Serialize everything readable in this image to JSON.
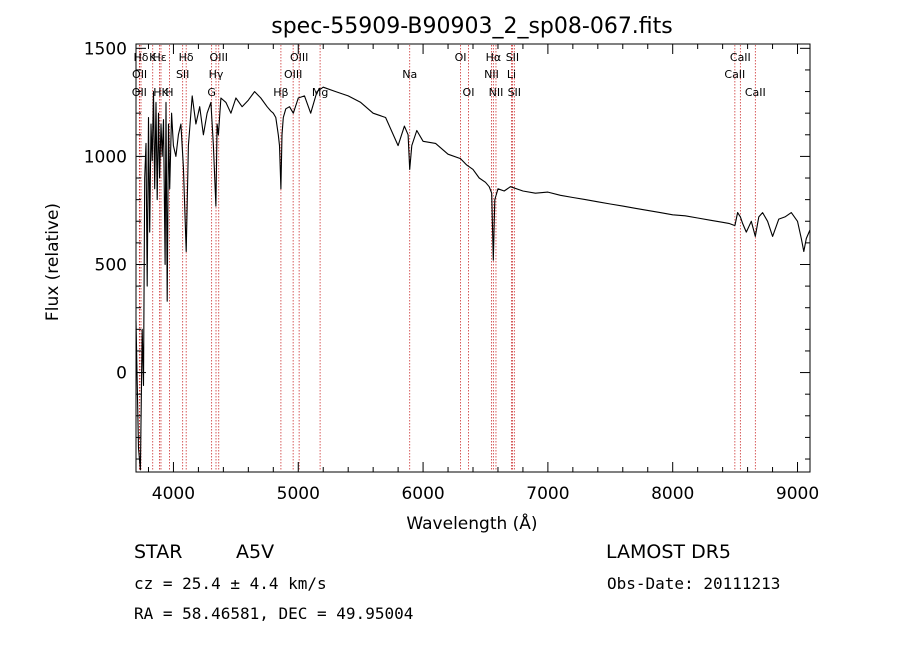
{
  "chart_data": {
    "type": "line",
    "title": "spec-55909-B90903_2_sp08-067.fits",
    "xlabel": "Wavelength (Å)",
    "ylabel": "Flux (relative)",
    "xlim": [
      3700,
      9100
    ],
    "ylim": [
      -460,
      1520
    ],
    "x_ticks": [
      4000,
      5000,
      6000,
      7000,
      8000,
      9000
    ],
    "y_ticks": [
      0,
      500,
      1000,
      1500
    ],
    "grid": false,
    "series": [
      {
        "x": [
          3700,
          3720,
          3735,
          3750,
          3760,
          3770,
          3780,
          3790,
          3800,
          3810,
          3820,
          3830,
          3840,
          3850,
          3860,
          3870,
          3880,
          3889,
          3900,
          3910,
          3920,
          3933,
          3940,
          3950,
          3960,
          3970,
          3985,
          4000,
          4020,
          4040,
          4060,
          4080,
          4102,
          4120,
          4150,
          4180,
          4210,
          4240,
          4270,
          4300,
          4320,
          4340,
          4350,
          4360,
          4380,
          4420,
          4460,
          4500,
          4550,
          4600,
          4650,
          4700,
          4750,
          4780,
          4800,
          4820,
          4840,
          4850,
          4861,
          4870,
          4880,
          4900,
          4930,
          4960,
          5000,
          5050,
          5100,
          5150,
          5200,
          5300,
          5400,
          5500,
          5600,
          5700,
          5800,
          5850,
          5880,
          5893,
          5910,
          5950,
          6000,
          6100,
          6200,
          6300,
          6350,
          6400,
          6450,
          6500,
          6530,
          6550,
          6563,
          6575,
          6600,
          6650,
          6700,
          6800,
          6900,
          7000,
          7100,
          7200,
          7300,
          7400,
          7500,
          7600,
          7700,
          7800,
          7900,
          8000,
          8100,
          8200,
          8300,
          8400,
          8450,
          8498,
          8520,
          8542,
          8560,
          8590,
          8630,
          8662,
          8690,
          8720,
          8760,
          8800,
          8850,
          8900,
          8950,
          9000,
          9030,
          9050,
          9070,
          9100
        ],
        "y": [
          240,
          -350,
          -450,
          200,
          -60,
          900,
          1060,
          400,
          1180,
          650,
          1150,
          980,
          1300,
          850,
          1250,
          800,
          1200,
          900,
          1150,
          1000,
          1170,
          500,
          1250,
          330,
          1150,
          850,
          1200,
          1050,
          1000,
          1100,
          1150,
          950,
          560,
          1050,
          1280,
          1150,
          1230,
          1100,
          1200,
          1250,
          1050,
          770,
          1150,
          1100,
          1270,
          1250,
          1200,
          1270,
          1230,
          1260,
          1300,
          1270,
          1230,
          1210,
          1200,
          1180,
          1100,
          1050,
          850,
          1100,
          1180,
          1220,
          1230,
          1200,
          1270,
          1280,
          1200,
          1300,
          1320,
          1300,
          1280,
          1250,
          1200,
          1180,
          1050,
          1140,
          1100,
          940,
          1050,
          1120,
          1070,
          1060,
          1010,
          990,
          960,
          940,
          900,
          880,
          860,
          830,
          520,
          800,
          850,
          840,
          860,
          840,
          830,
          835,
          820,
          810,
          800,
          790,
          780,
          770,
          760,
          750,
          740,
          730,
          725,
          715,
          705,
          695,
          690,
          680,
          740,
          720,
          690,
          650,
          700,
          630,
          720,
          740,
          700,
          630,
          710,
          720,
          740,
          700,
          620,
          560,
          620,
          660
        ]
      }
    ],
    "lines": [
      {
        "label": "Hδ",
        "x": 3740,
        "row": 0
      },
      {
        "label": "OII",
        "x": 3729,
        "row": 1
      },
      {
        "label": "OII",
        "x": 3727,
        "row": 2
      },
      {
        "label": "K",
        "x": 3834,
        "row": 0
      },
      {
        "label": "Hε",
        "x": 3889,
        "row": 0
      },
      {
        "label": "HK",
        "x": 3900,
        "row": 2
      },
      {
        "label": "H",
        "x": 3968,
        "row": 2
      },
      {
        "label": "Hδ",
        "x": 4102,
        "row": 0
      },
      {
        "label": "SII",
        "x": 4074,
        "row": 1
      },
      {
        "label": "OIII",
        "x": 4363,
        "row": 0
      },
      {
        "label": "Hγ",
        "x": 4341,
        "row": 1
      },
      {
        "label": "G",
        "x": 4306,
        "row": 2
      },
      {
        "label": "Hβ",
        "x": 4861,
        "row": 2
      },
      {
        "label": "OIII",
        "x": 5007,
        "row": 0
      },
      {
        "label": "OIII",
        "x": 4959,
        "row": 1
      },
      {
        "label": "Mg",
        "x": 5175,
        "row": 2
      },
      {
        "label": "Na",
        "x": 5893,
        "row": 1
      },
      {
        "label": "OI",
        "x": 6300,
        "row": 0
      },
      {
        "label": "OI",
        "x": 6364,
        "row": 2
      },
      {
        "label": "Hα",
        "x": 6563,
        "row": 0
      },
      {
        "label": "SII",
        "x": 6716,
        "row": 0
      },
      {
        "label": "NII",
        "x": 6548,
        "row": 1
      },
      {
        "label": "Li",
        "x": 6708,
        "row": 1
      },
      {
        "label": "NII",
        "x": 6584,
        "row": 2
      },
      {
        "label": "SII",
        "x": 6731,
        "row": 2
      },
      {
        "label": "CaII",
        "x": 8542,
        "row": 0
      },
      {
        "label": "CaII",
        "x": 8498,
        "row": 1
      },
      {
        "label": "CaII",
        "x": 8662,
        "row": 2
      }
    ],
    "colors": {
      "spectrum": "#000000",
      "line_markers": "#cc3333",
      "frame": "#000000"
    }
  },
  "info": {
    "object_class": "STAR",
    "subclass": "A5V",
    "survey": "LAMOST  DR5",
    "cz": "cz = 25.4 ± 4.4 km/s",
    "obs_date": "Obs-Date: 20111213",
    "radec": "RA =  58.46581, DEC =  49.95004"
  }
}
